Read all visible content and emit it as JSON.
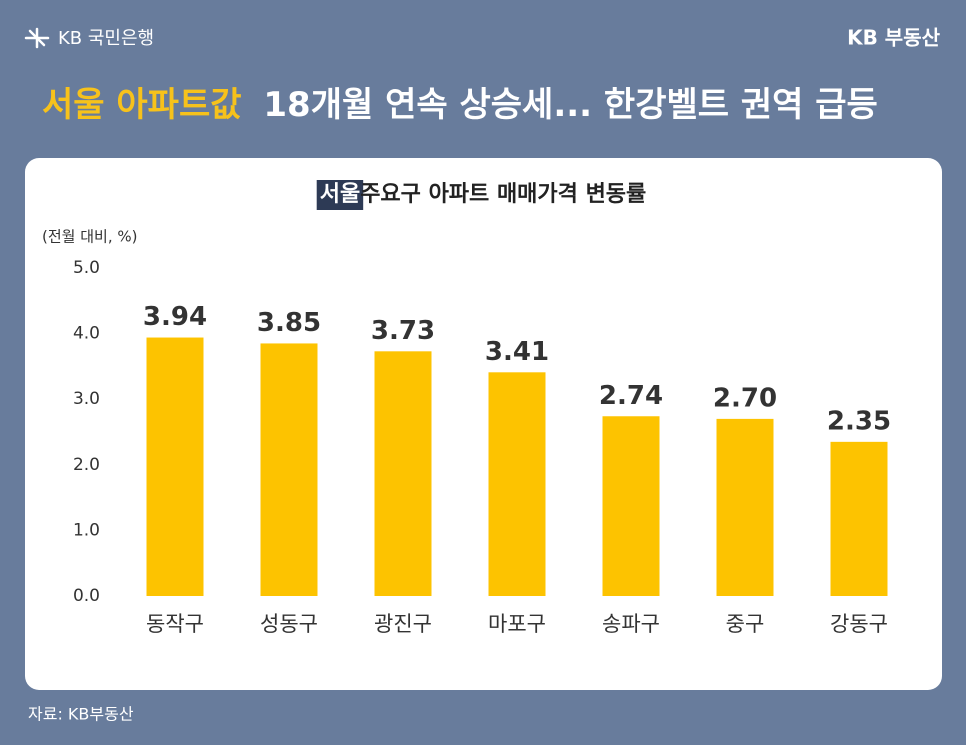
{
  "header": {
    "logo": "KB 국민은행",
    "brand": "KB 부동산",
    "headline_highlight": "서울 아파트값",
    "headline": "18개월 연속 상승세... 한강벨트 권역 급등"
  },
  "chart_data": {
    "type": "bar",
    "title_highlight": "서울",
    "title": "주요구 아파트 매매가격 변동률",
    "y_label": "(전월 대비, %)",
    "categories": [
      "동작구",
      "성동구",
      "광진구",
      "마포구",
      "송파구",
      "중구",
      "강동구"
    ],
    "values": [
      3.94,
      3.85,
      3.73,
      3.41,
      2.74,
      2.7,
      2.35
    ],
    "value_labels": [
      "3.94",
      "3.85",
      "3.73",
      "3.41",
      "2.74",
      "2.70",
      "2.35"
    ],
    "color": "#fdc300",
    "ylim": [
      0,
      5
    ],
    "yticks": [
      {
        "value": 0,
        "label": "0.0"
      },
      {
        "value": 1,
        "label": "1.0"
      },
      {
        "value": 2,
        "label": "2.0"
      },
      {
        "value": 3,
        "label": "3.0"
      },
      {
        "value": 4,
        "label": "4.0"
      },
      {
        "value": 5,
        "label": "5.0"
      }
    ],
    "grid": false
  },
  "footer": {
    "source": "자료: KB부동산"
  }
}
